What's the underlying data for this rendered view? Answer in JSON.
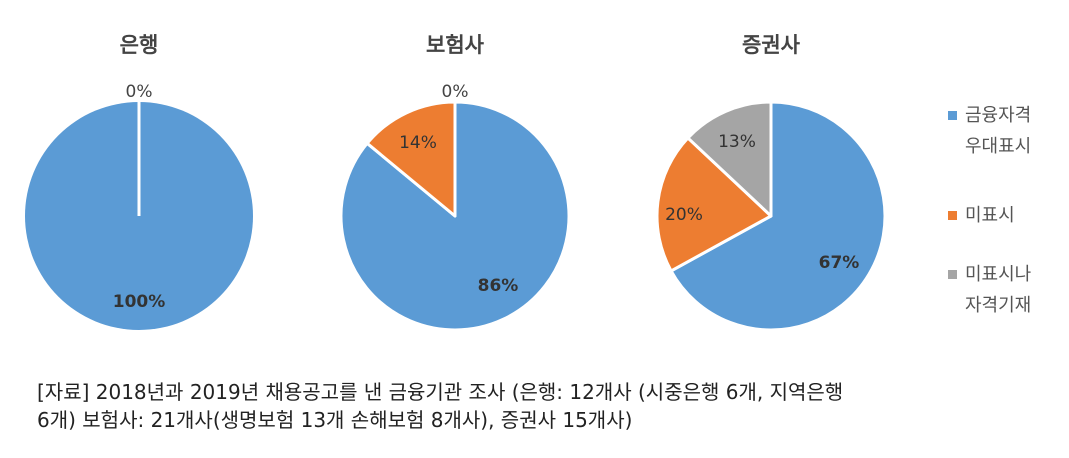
{
  "chart_data": [
    {
      "type": "pie",
      "title": "은행",
      "categories": [
        "금융자격우대표시",
        "미표시",
        "미표시나자격기재"
      ],
      "values": [
        100,
        0,
        0
      ],
      "labels": [
        "100%",
        "0%",
        ""
      ]
    },
    {
      "type": "pie",
      "title": "보험사",
      "categories": [
        "금융자격우대표시",
        "미표시",
        "미표시나자격기재"
      ],
      "values": [
        86,
        14,
        0
      ],
      "labels": [
        "86%",
        "14%",
        "0%"
      ]
    },
    {
      "type": "pie",
      "title": "증권사",
      "categories": [
        "금융자격우대표시",
        "미표시",
        "미표시나자격기재"
      ],
      "values": [
        67,
        20,
        13
      ],
      "labels": [
        "67%",
        "20%",
        "13%"
      ]
    }
  ],
  "legend": {
    "placement": "right",
    "items": [
      {
        "label": "금융자격\n우대표시",
        "color": "#5B9BD5"
      },
      {
        "label": "미표시",
        "color": "#ED7D31"
      },
      {
        "label": "미표시나\n자격기재",
        "color": "#A5A5A5"
      }
    ]
  },
  "source_note": "[자료] 2018년과 2019년 채용공고를 낸 금융기관 조사 (은행: 12개사 (시중은행 6개, 지역은행\n6개) 보험사: 21개사(생명보험 13개 손해보험 8개사), 증권사 15개사)"
}
